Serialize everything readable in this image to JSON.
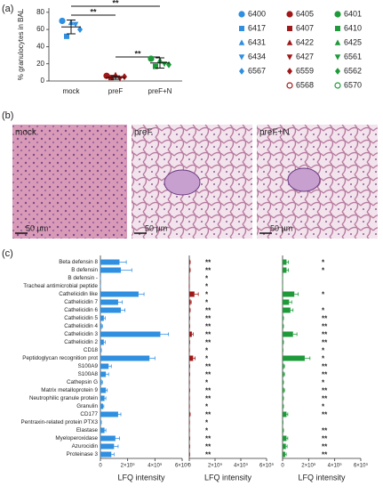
{
  "panel_labels": [
    "(a)",
    "(b)",
    "(c)"
  ],
  "images": [
    {
      "label": "mock",
      "scale": "50 µm"
    },
    {
      "label": "preF",
      "scale": "50 µm"
    },
    {
      "label": "preF+N",
      "scale": "50 µm"
    }
  ],
  "chart_data": [
    {
      "type": "scatter",
      "ylabel": "% granulocytes in BAL",
      "categories": [
        "mock",
        "preF",
        "preF+N"
      ],
      "ylim": [
        0,
        85
      ],
      "yticks": [
        0,
        20,
        40,
        60,
        80
      ],
      "means": [
        63,
        4,
        21
      ],
      "errors": [
        8,
        2,
        6
      ],
      "brackets": [
        {
          "from": "mock",
          "to": "preF",
          "text": "**"
        },
        {
          "from": "mock",
          "to": "preF+N",
          "text": "**"
        },
        {
          "from": "preF",
          "to": "preF+N",
          "text": "**"
        }
      ],
      "series": [
        {
          "name": "6400",
          "color": "#2f8fe0",
          "marker": "circle",
          "category": "mock",
          "value": 70
        },
        {
          "name": "6417",
          "color": "#2f8fe0",
          "marker": "square",
          "category": "mock",
          "value": 52
        },
        {
          "name": "6431",
          "color": "#2f8fe0",
          "marker": "triangle",
          "category": "mock",
          "value": 68
        },
        {
          "name": "6434",
          "color": "#2f8fe0",
          "marker": "down",
          "category": "mock",
          "value": 66
        },
        {
          "name": "6567",
          "color": "#2f8fe0",
          "marker": "diamond",
          "category": "mock",
          "value": 60
        },
        {
          "name": "6405",
          "color": "#a01818",
          "marker": "circle",
          "category": "preF",
          "value": 6
        },
        {
          "name": "6407",
          "color": "#a01818",
          "marker": "square",
          "category": "preF",
          "value": 4
        },
        {
          "name": "6422",
          "color": "#a01818",
          "marker": "triangle",
          "category": "preF",
          "value": 7
        },
        {
          "name": "6427",
          "color": "#a01818",
          "marker": "down",
          "category": "preF",
          "value": 3
        },
        {
          "name": "6559",
          "color": "#a01818",
          "marker": "diamond",
          "category": "preF",
          "value": 5
        },
        {
          "name": "6568",
          "color": "#a01818",
          "marker": "open",
          "category": "preF",
          "value": null
        },
        {
          "name": "6401",
          "color": "#1e9a3a",
          "marker": "circle",
          "category": "preF+N",
          "value": 26
        },
        {
          "name": "6410",
          "color": "#1e9a3a",
          "marker": "square",
          "category": "preF+N",
          "value": 17
        },
        {
          "name": "6425",
          "color": "#1e9a3a",
          "marker": "triangle",
          "category": "preF+N",
          "value": 24
        },
        {
          "name": "6561",
          "color": "#1e9a3a",
          "marker": "down",
          "category": "preF+N",
          "value": 20
        },
        {
          "name": "6562",
          "color": "#1e9a3a",
          "marker": "diamond",
          "category": "preF+N",
          "value": 19
        },
        {
          "name": "6570",
          "color": "#1e9a3a",
          "marker": "open",
          "category": "preF+N",
          "value": null
        }
      ]
    },
    {
      "type": "bar",
      "color": "#2f8fe0",
      "xlabel": "LFQ intensity",
      "xlim": [
        0,
        6000000000
      ],
      "xticks": [
        0,
        {
          "value": 2000000000,
          "label": "2×10⁹"
        },
        {
          "value": 4000000000,
          "label": "4×10⁹"
        },
        {
          "value": 6000000000,
          "label": "6×10⁹"
        }
      ],
      "categories": [
        "Beta defensin 8",
        "B defensin",
        "B defensin -",
        "Tracheal antimicrobial peptide",
        "Cathelicidin like",
        "Cathelicidin 7",
        "Cathelicidin 6",
        "Cathelicidin 5",
        "Cathelicidin 4",
        "Cathelicidin 3",
        "Cathelicidin 2",
        "CD18",
        "Peptidoglycan recognition prot",
        "S100A9",
        "S100A8",
        "Cathepsin G",
        "Matrix metalloprotein 9",
        "Neutrophilic granule protein",
        "Granulin",
        "CD177",
        "Pentraxin-related protein PTX3",
        "Elastase",
        "Myeloperoxidase",
        "Azurocidin",
        "Proteinase 3"
      ],
      "values": [
        1400000000,
        1500000000,
        0,
        0,
        2800000000,
        1300000000,
        1500000000,
        250000000,
        100000000,
        4400000000,
        250000000,
        50000000,
        3600000000,
        600000000,
        400000000,
        100000000,
        400000000,
        300000000,
        200000000,
        1300000000,
        50000000,
        300000000,
        1100000000,
        1000000000,
        800000000
      ],
      "errors": [
        500000000,
        800000000,
        0,
        0,
        400000000,
        300000000,
        300000000,
        100000000,
        50000000,
        600000000,
        100000000,
        20000000,
        400000000,
        200000000,
        200000000,
        50000000,
        100000000,
        100000000,
        50000000,
        200000000,
        20000000,
        100000000,
        300000000,
        300000000,
        200000000
      ]
    },
    {
      "type": "bar",
      "color": "#a01818",
      "xlabel": "LFQ intensity",
      "xlim": [
        0,
        6000000000
      ],
      "xticks": [
        0,
        {
          "value": 2000000000,
          "label": "2×10⁹"
        },
        {
          "value": 4000000000,
          "label": "4×10⁹"
        },
        {
          "value": 6000000000,
          "label": "6×10⁹"
        }
      ],
      "values": [
        50000000,
        50000000,
        0,
        0,
        400000000,
        100000000,
        50000000,
        20000000,
        20000000,
        200000000,
        20000000,
        10000000,
        300000000,
        20000000,
        20000000,
        10000000,
        20000000,
        10000000,
        10000000,
        50000000,
        10000000,
        10000000,
        20000000,
        20000000,
        20000000
      ],
      "errors": [
        20000000,
        20000000,
        0,
        0,
        300000000,
        50000000,
        20000000,
        10000000,
        10000000,
        100000000,
        10000000,
        5000000,
        150000000,
        10000000,
        10000000,
        5000000,
        10000000,
        5000000,
        5000000,
        20000000,
        5000000,
        5000000,
        10000000,
        10000000,
        10000000
      ],
      "stars": [
        "**",
        "**",
        "*",
        "*",
        "*",
        "*",
        "**",
        "**",
        "**",
        "**",
        "**",
        "*",
        "*",
        "**",
        "**",
        "*",
        "**",
        "**",
        "*",
        "**",
        "*",
        "*",
        "**",
        "**",
        "**"
      ]
    },
    {
      "type": "bar",
      "color": "#1e9a3a",
      "xlabel": "LFQ intensity",
      "xlim": [
        0,
        6000000000
      ],
      "xticks": [
        0,
        {
          "value": 2000000000,
          "label": "2×10⁹"
        },
        {
          "value": 4000000000,
          "label": "4×10⁹"
        },
        {
          "value": 6000000000,
          "label": "6×10⁹"
        }
      ],
      "values": [
        300000000,
        300000000,
        0,
        0,
        900000000,
        500000000,
        600000000,
        50000000,
        50000000,
        800000000,
        50000000,
        20000000,
        1700000000,
        100000000,
        100000000,
        50000000,
        100000000,
        50000000,
        50000000,
        300000000,
        20000000,
        50000000,
        300000000,
        250000000,
        200000000
      ],
      "errors": [
        150000000,
        150000000,
        0,
        0,
        300000000,
        200000000,
        200000000,
        20000000,
        20000000,
        300000000,
        20000000,
        10000000,
        400000000,
        50000000,
        50000000,
        20000000,
        50000000,
        20000000,
        20000000,
        100000000,
        10000000,
        20000000,
        100000000,
        100000000,
        80000000
      ],
      "stars": [
        "*",
        "*",
        null,
        null,
        "*",
        null,
        "*",
        "**",
        "**",
        "**",
        "**",
        "*",
        "*",
        "**",
        "**",
        "*",
        "**",
        "**",
        "*",
        "**",
        null,
        "**",
        "**",
        "**",
        "**"
      ]
    }
  ]
}
